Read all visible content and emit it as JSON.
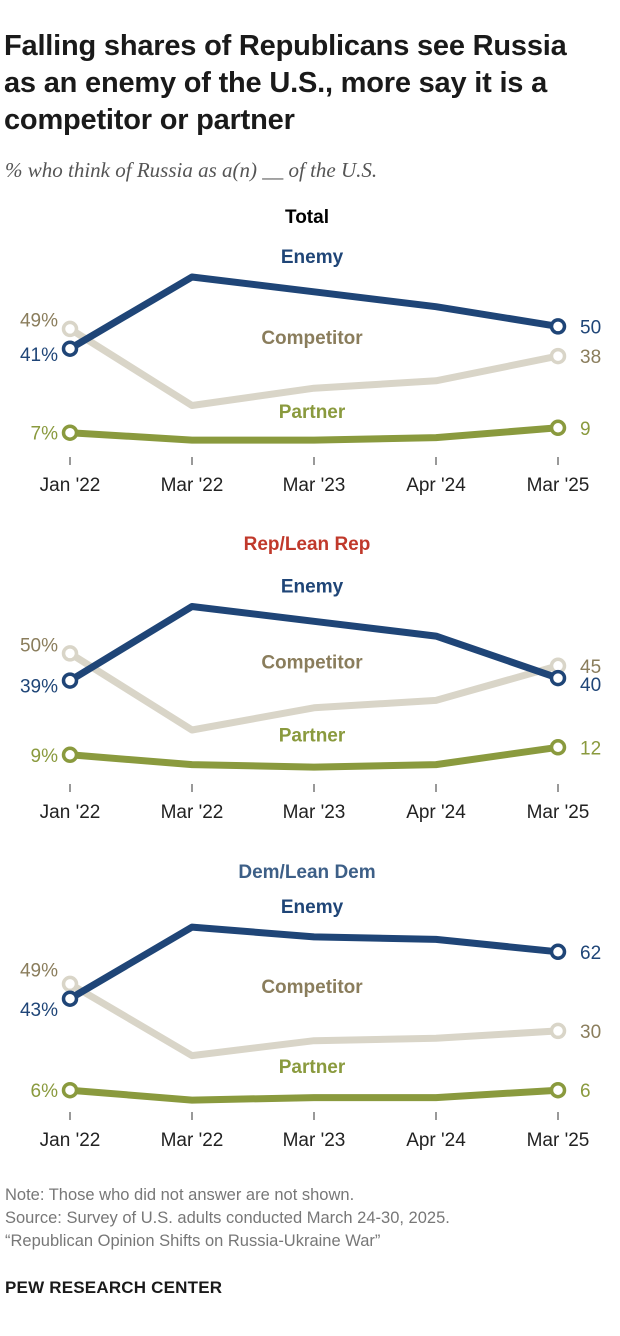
{
  "title": "Falling shares of Republicans see Russia as an enemy of the U.S., more say it is a competitor or partner",
  "subtitle": "% who think of Russia as a(n) __ of the U.S.",
  "colors": {
    "enemy": "#1f4577",
    "competitor": "#d9d5c8",
    "partner": "#8a9a3e",
    "competitor_label": "#8a7d5c",
    "total_title": "#000000",
    "rep_title": "#c0392b",
    "dem_title": "#3d5f87"
  },
  "chart_data": [
    {
      "type": "line",
      "title": "Total",
      "x": [
        "Jan '22",
        "Mar '22",
        "Mar '23",
        "Apr '24",
        "Mar '25"
      ],
      "ylim": [
        0,
        70
      ],
      "series": [
        {
          "name": "Enemy",
          "values": [
            41,
            70,
            64,
            58,
            50
          ],
          "start_label": "41%",
          "end_label": "50"
        },
        {
          "name": "Competitor",
          "values": [
            49,
            18,
            25,
            28,
            38
          ],
          "start_label": "49%",
          "end_label": "38"
        },
        {
          "name": "Partner",
          "values": [
            7,
            4,
            4,
            5,
            9
          ],
          "start_label": "7%",
          "end_label": "9"
        }
      ]
    },
    {
      "type": "line",
      "title": "Rep/Lean Rep",
      "x": [
        "Jan '22",
        "Mar '22",
        "Mar '23",
        "Apr '24",
        "Mar '25"
      ],
      "ylim": [
        0,
        70
      ],
      "series": [
        {
          "name": "Enemy",
          "values": [
            39,
            69,
            63,
            57,
            40
          ],
          "start_label": "39%",
          "end_label": "40"
        },
        {
          "name": "Competitor",
          "values": [
            50,
            19,
            28,
            31,
            45
          ],
          "start_label": "50%",
          "end_label": "45"
        },
        {
          "name": "Partner",
          "values": [
            9,
            5,
            4,
            5,
            12
          ],
          "start_label": "9%",
          "end_label": "12"
        }
      ]
    },
    {
      "type": "line",
      "title": "Dem/Lean Dem",
      "x": [
        "Jan '22",
        "Mar '22",
        "Mar '23",
        "Apr '24",
        "Mar '25"
      ],
      "ylim": [
        0,
        70
      ],
      "series": [
        {
          "name": "Enemy",
          "values": [
            43,
            72,
            68,
            67,
            62
          ],
          "start_label": "43%",
          "end_label": "62"
        },
        {
          "name": "Competitor",
          "values": [
            49,
            20,
            26,
            27,
            30
          ],
          "start_label": "49%",
          "end_label": "30"
        },
        {
          "name": "Partner",
          "values": [
            6,
            2,
            3,
            3,
            6
          ],
          "start_label": "6%",
          "end_label": "6"
        }
      ]
    }
  ],
  "notes": {
    "note": "Note: Those who did not answer are not shown.",
    "source": "Source: Survey of U.S. adults conducted March 24-30, 2025.",
    "report": "“Republican Opinion Shifts on Russia-Ukraine War”"
  },
  "org": "PEW RESEARCH CENTER"
}
